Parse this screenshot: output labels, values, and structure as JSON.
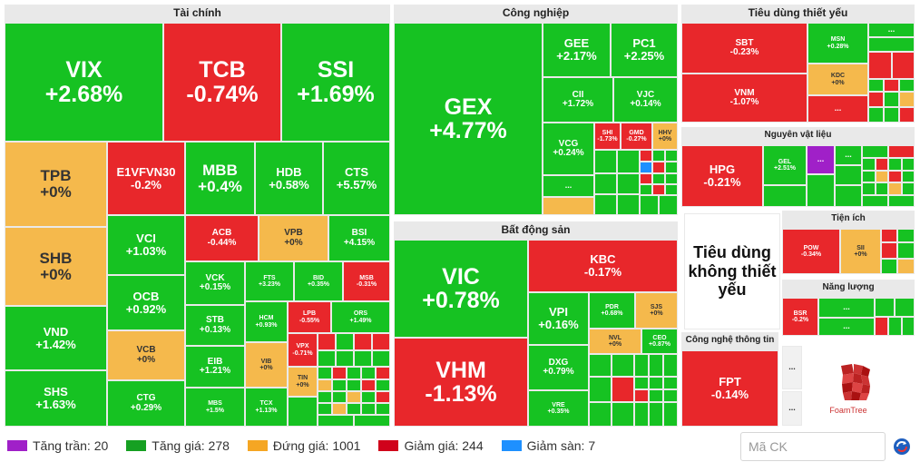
{
  "sectors": {
    "tai_chinh": "Tài chính",
    "cong_nghiep": "Công nghiệp",
    "tieu_dung_thiet_yeu": "Tiêu dùng thiết yếu",
    "nguyen_vat_lieu": "Nguyên vật liệu",
    "bat_dong_san": "Bất động sản",
    "tien_ich": "Tiện ích",
    "nang_luong": "Năng lượng",
    "cong_nghe_thong_tin": "Công nghệ thông tin",
    "tieu_dung_khong_thiet_yeu": "Tiêu dùng không thiết yếu"
  },
  "tiles": {
    "VIX": {
      "sym": "VIX",
      "pct": "+2.68%"
    },
    "TCB": {
      "sym": "TCB",
      "pct": "-0.74%"
    },
    "SSI": {
      "sym": "SSI",
      "pct": "+1.69%"
    },
    "TPB": {
      "sym": "TPB",
      "pct": "+0%"
    },
    "E1VFVN30": {
      "sym": "E1VFVN30",
      "pct": "-0.2%"
    },
    "MBB": {
      "sym": "MBB",
      "pct": "+0.4%"
    },
    "HDB": {
      "sym": "HDB",
      "pct": "+0.58%"
    },
    "CTS": {
      "sym": "CTS",
      "pct": "+5.57%"
    },
    "SHB": {
      "sym": "SHB",
      "pct": "+0%"
    },
    "VCI": {
      "sym": "VCI",
      "pct": "+1.03%"
    },
    "ACB": {
      "sym": "ACB",
      "pct": "-0.44%"
    },
    "VPB": {
      "sym": "VPB",
      "pct": "+0%"
    },
    "BSI": {
      "sym": "BSI",
      "pct": "+4.15%"
    },
    "VND": {
      "sym": "VND",
      "pct": "+1.42%"
    },
    "OCB": {
      "sym": "OCB",
      "pct": "+0.92%"
    },
    "VCK": {
      "sym": "VCK",
      "pct": "+0.15%"
    },
    "FTS": {
      "sym": "FTS",
      "pct": "+3.23%"
    },
    "BID": {
      "sym": "BID",
      "pct": "+0.35%"
    },
    "MSB": {
      "sym": "MSB",
      "pct": "-0.31%"
    },
    "VCB": {
      "sym": "VCB",
      "pct": "+0%"
    },
    "STB": {
      "sym": "STB",
      "pct": "+0.13%"
    },
    "HCM": {
      "sym": "HCM",
      "pct": "+0.93%"
    },
    "LPB": {
      "sym": "LPB",
      "pct": "-0.55%"
    },
    "ORS": {
      "sym": "ORS",
      "pct": "+1.49%"
    },
    "SHS": {
      "sym": "SHS",
      "pct": "+1.63%"
    },
    "EIB": {
      "sym": "EIB",
      "pct": "+1.21%"
    },
    "VIB": {
      "sym": "VIB",
      "pct": "+0%"
    },
    "VPX": {
      "sym": "VPX",
      "pct": "-0.71%"
    },
    "TIN": {
      "sym": "TIN",
      "pct": "+0%"
    },
    "CTG": {
      "sym": "CTG",
      "pct": "+0.29%"
    },
    "MBS": {
      "sym": "MBS",
      "pct": "+1.5%"
    },
    "TCX": {
      "sym": "TCX",
      "pct": "+1.13%"
    },
    "GEX": {
      "sym": "GEX",
      "pct": "+4.77%"
    },
    "GEE": {
      "sym": "GEE",
      "pct": "+2.17%"
    },
    "PC1": {
      "sym": "PC1",
      "pct": "+2.25%"
    },
    "CII": {
      "sym": "CII",
      "pct": "+1.72%"
    },
    "VJC": {
      "sym": "VJC",
      "pct": "+0.14%"
    },
    "VCG": {
      "sym": "VCG",
      "pct": "+0.24%"
    },
    "SHI": {
      "sym": "SHI",
      "pct": "-1.73%"
    },
    "GMD": {
      "sym": "GMD",
      "pct": "-0.27%"
    },
    "HHV": {
      "sym": "HHV",
      "pct": "+0%"
    },
    "SBT": {
      "sym": "SBT",
      "pct": "-0.23%"
    },
    "MSN": {
      "sym": "MSN",
      "pct": "+0.28%"
    },
    "KDC": {
      "sym": "KDC",
      "pct": "+0%"
    },
    "VNM": {
      "sym": "VNM",
      "pct": "-1.07%"
    },
    "HPG": {
      "sym": "HPG",
      "pct": "-0.21%"
    },
    "GEL": {
      "sym": "GEL",
      "pct": "+2.51%"
    },
    "VIC": {
      "sym": "VIC",
      "pct": "+0.78%"
    },
    "KBC": {
      "sym": "KBC",
      "pct": "-0.17%"
    },
    "VPI": {
      "sym": "VPI",
      "pct": "+0.16%"
    },
    "PDR": {
      "sym": "PDR",
      "pct": "+0.68%"
    },
    "SJS": {
      "sym": "SJS",
      "pct": "+0%"
    },
    "NVL": {
      "sym": "NVL",
      "pct": "+0%"
    },
    "CEO": {
      "sym": "CEO",
      "pct": "+0.87%"
    },
    "VHM": {
      "sym": "VHM",
      "pct": "-1.13%"
    },
    "DXG": {
      "sym": "DXG",
      "pct": "+0.79%"
    },
    "VRE": {
      "sym": "VRE",
      "pct": "+0.35%"
    },
    "POW": {
      "sym": "POW",
      "pct": "-0.34%"
    },
    "SII": {
      "sym": "SII",
      "pct": "+0%"
    },
    "BSR": {
      "sym": "BSR",
      "pct": "-0.2%"
    },
    "FPT": {
      "sym": "FPT",
      "pct": "-0.14%"
    }
  },
  "dots": "...",
  "legend": {
    "tang_tran": "Tăng trần: 20",
    "tang_gia": "Tăng giá: 278",
    "dung_gia": "Đứng giá: 1001",
    "giam_gia": "Giảm giá: 244",
    "giam_san": "Giảm sàn: 7"
  },
  "colors": {
    "increase": "#16c222",
    "decrease": "#e8272b",
    "reference": "#f5b94c",
    "ceiling": "#a020c8",
    "floor": "#1e90ff"
  },
  "search": {
    "placeholder": "Mã CK"
  },
  "logo": {
    "text": "FoamTree"
  }
}
